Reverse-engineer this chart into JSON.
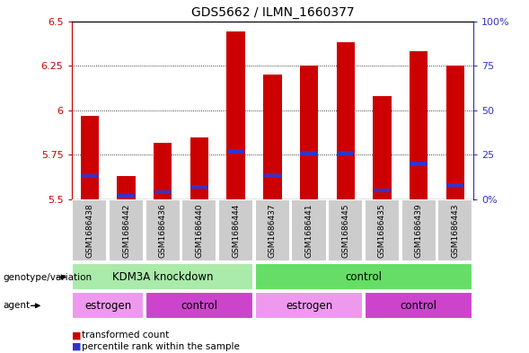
{
  "title": "GDS5662 / ILMN_1660377",
  "samples": [
    "GSM1686438",
    "GSM1686442",
    "GSM1686436",
    "GSM1686440",
    "GSM1686444",
    "GSM1686437",
    "GSM1686441",
    "GSM1686445",
    "GSM1686435",
    "GSM1686439",
    "GSM1686443"
  ],
  "bar_bottoms": [
    5.5,
    5.5,
    5.5,
    5.5,
    5.5,
    5.5,
    5.5,
    5.5,
    5.5,
    5.5,
    5.5
  ],
  "bar_tops": [
    5.97,
    5.63,
    5.82,
    5.85,
    6.44,
    6.2,
    6.25,
    6.38,
    6.08,
    6.33,
    6.25
  ],
  "percentile_values": [
    5.63,
    5.52,
    5.54,
    5.57,
    5.77,
    5.63,
    5.76,
    5.76,
    5.55,
    5.7,
    5.58
  ],
  "ylim_left": [
    5.5,
    6.5
  ],
  "ylim_right": [
    0,
    100
  ],
  "yticks_left": [
    5.5,
    5.75,
    6.0,
    6.25,
    6.5
  ],
  "ytick_labels_left": [
    "5.5",
    "5.75",
    "6",
    "6.25",
    "6.5"
  ],
  "yticks_right": [
    0,
    25,
    50,
    75,
    100
  ],
  "ytick_labels_right": [
    "0%",
    "25",
    "50",
    "75",
    "100%"
  ],
  "grid_values": [
    5.75,
    6.0,
    6.25
  ],
  "bar_color": "#cc0000",
  "percentile_color": "#3333cc",
  "genotype_groups": [
    {
      "label": "KDM3A knockdown",
      "start": 0,
      "end": 4,
      "color": "#aaeaaa"
    },
    {
      "label": "control",
      "start": 5,
      "end": 10,
      "color": "#66dd66"
    }
  ],
  "agent_groups": [
    {
      "label": "estrogen",
      "start": 0,
      "end": 1,
      "color": "#ee99ee"
    },
    {
      "label": "control",
      "start": 2,
      "end": 4,
      "color": "#cc44cc"
    },
    {
      "label": "estrogen",
      "start": 5,
      "end": 7,
      "color": "#ee99ee"
    },
    {
      "label": "control",
      "start": 8,
      "end": 10,
      "color": "#cc44cc"
    }
  ],
  "left_axis_color": "#cc0000",
  "right_axis_color": "#3333cc",
  "row_label_geno": "genotype/variation",
  "row_label_agent": "agent",
  "legend_items": [
    {
      "label": "transformed count",
      "color": "#cc0000"
    },
    {
      "label": "percentile rank within the sample",
      "color": "#3333cc"
    }
  ],
  "bg_color": "#ffffff",
  "sample_bg_color": "#cccccc",
  "bar_width": 0.5
}
